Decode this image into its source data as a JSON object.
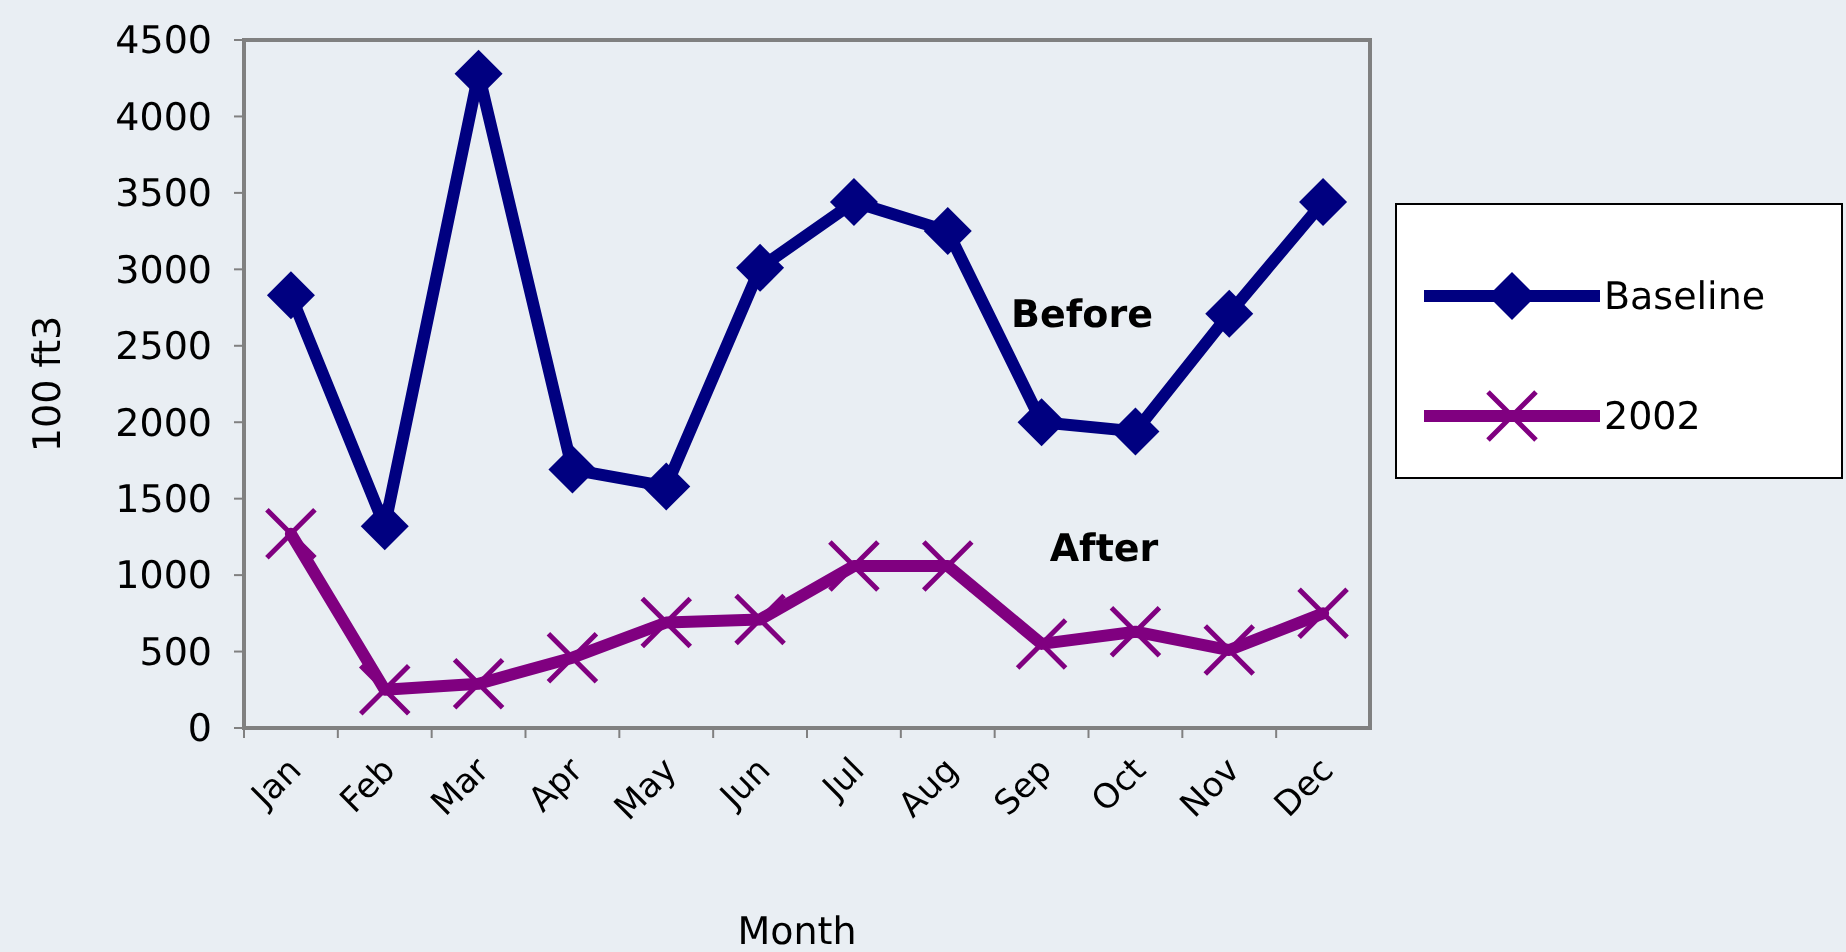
{
  "chart_data": {
    "type": "line",
    "xlabel": "Month",
    "ylabel": "100 ft3",
    "categories": [
      "Jan",
      "Feb",
      "Mar",
      "Apr",
      "May",
      "Jun",
      "Jul",
      "Aug",
      "Sep",
      "Oct",
      "Nov",
      "Dec"
    ],
    "series": [
      {
        "name": "Baseline",
        "color": "#000080",
        "marker": "diamond",
        "values": [
          2830,
          1320,
          4280,
          1690,
          1580,
          3010,
          3440,
          3250,
          2000,
          1940,
          2710,
          3440
        ]
      },
      {
        "name": "2002",
        "color": "#800080",
        "marker": "cross",
        "values": [
          1270,
          250,
          290,
          460,
          690,
          710,
          1060,
          1060,
          550,
          630,
          510,
          750
        ]
      }
    ],
    "ylim": [
      0,
      4500
    ],
    "yticks": [
      0,
      500,
      1000,
      1500,
      2000,
      2500,
      3000,
      3500,
      4000,
      4500
    ],
    "annotations": [
      "Before",
      "After"
    ],
    "legend": "right",
    "grid": false
  }
}
